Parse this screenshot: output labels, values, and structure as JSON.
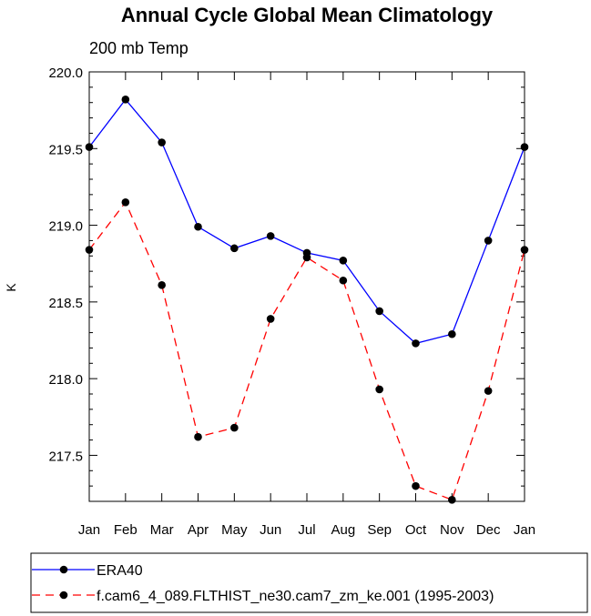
{
  "chart_data": {
    "type": "line",
    "title": "Annual Cycle Global Mean Climatology",
    "subtitle": "200 mb Temp",
    "xlabel": "",
    "ylabel": "K",
    "categories": [
      "Jan",
      "Feb",
      "Mar",
      "Apr",
      "May",
      "Jun",
      "Jul",
      "Aug",
      "Sep",
      "Oct",
      "Nov",
      "Dec",
      "Jan"
    ],
    "ylim": [
      217.2,
      220.0
    ],
    "yticks": [
      217.5,
      218.0,
      218.5,
      219.0,
      219.5,
      220.0
    ],
    "ytick_labels": [
      "217.5",
      "218.0",
      "218.5",
      "219.0",
      "219.5",
      "220.0"
    ],
    "series": [
      {
        "name": "ERA40",
        "color": "#0000ff",
        "dash": "solid",
        "values": [
          219.51,
          219.82,
          219.54,
          218.99,
          218.85,
          218.93,
          218.82,
          218.77,
          218.44,
          218.23,
          218.29,
          218.9,
          219.51
        ]
      },
      {
        "name": "f.cam6_4_089.FLTHIST_ne30.cam7_zm_ke.001 (1995-2003)",
        "color": "#ff0000",
        "dash": "dashed",
        "values": [
          218.84,
          219.15,
          218.61,
          217.62,
          217.68,
          218.39,
          218.79,
          218.64,
          217.93,
          217.3,
          217.21,
          217.92,
          218.84
        ]
      }
    ],
    "legend_position": "bottom"
  }
}
